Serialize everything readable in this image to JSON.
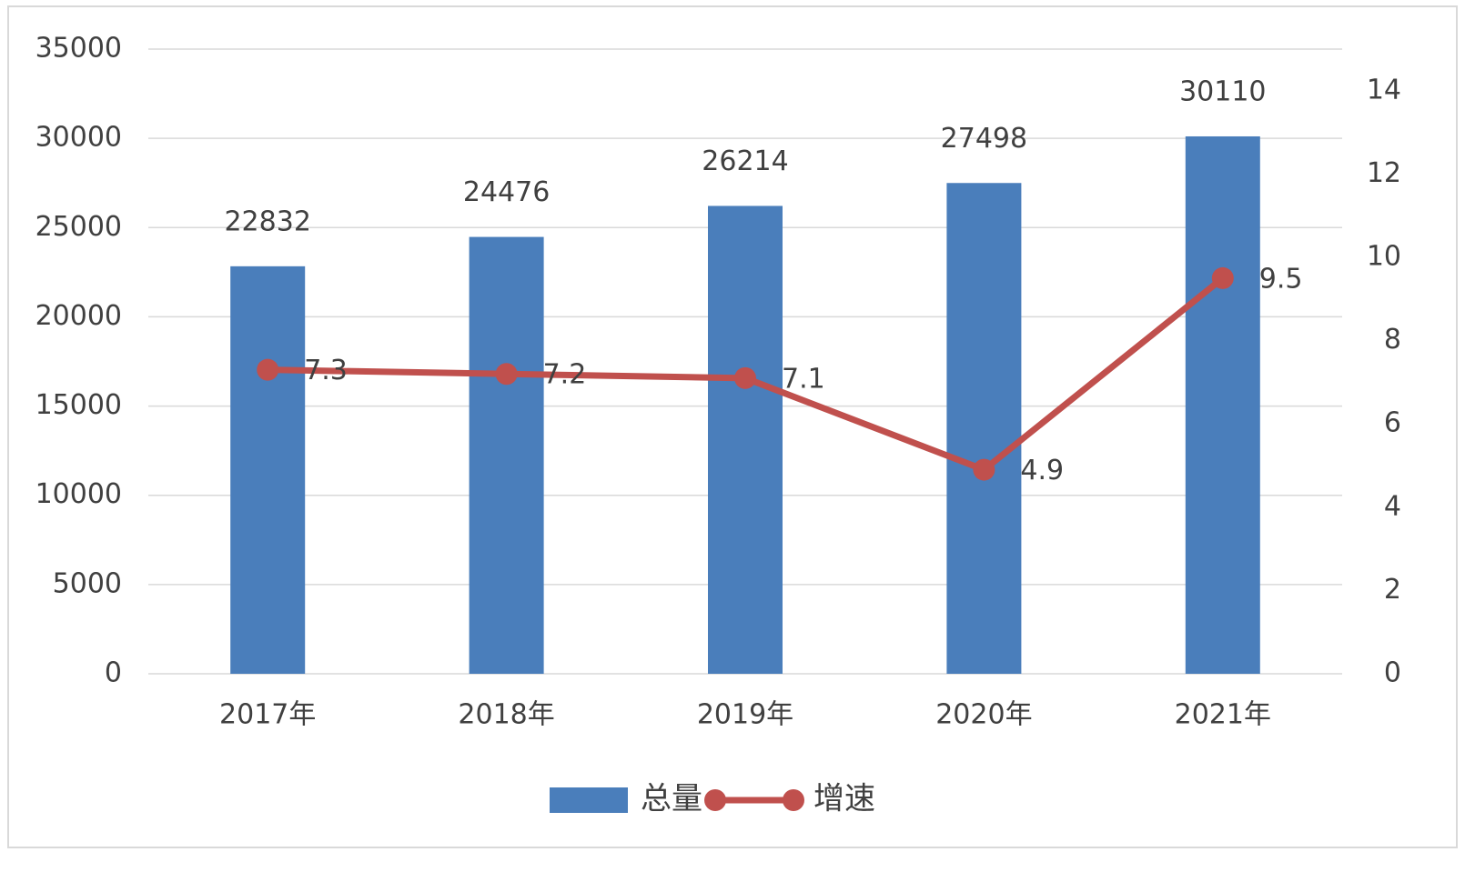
{
  "chart_data": {
    "type": "bar",
    "categories": [
      "2017年",
      "2018年",
      "2019年",
      "2020年",
      "2021年"
    ],
    "series": [
      {
        "name": "总量",
        "type": "bar",
        "color": "#4a7ebb",
        "values": [
          22832,
          24476,
          26214,
          27498,
          30110
        ]
      },
      {
        "name": "增速",
        "type": "line",
        "axis": "y2",
        "color": "#c0504d",
        "values": [
          7.3,
          7.2,
          7.1,
          4.9,
          9.5
        ]
      }
    ],
    "ylim": [
      0,
      35000
    ],
    "yticks": [
      0,
      5000,
      10000,
      15000,
      20000,
      25000,
      30000,
      35000
    ],
    "y2lim": [
      0,
      15
    ],
    "y2ticks": [
      0,
      2,
      4,
      6,
      8,
      10,
      12,
      14
    ],
    "grid": true,
    "legend": "bottom"
  }
}
